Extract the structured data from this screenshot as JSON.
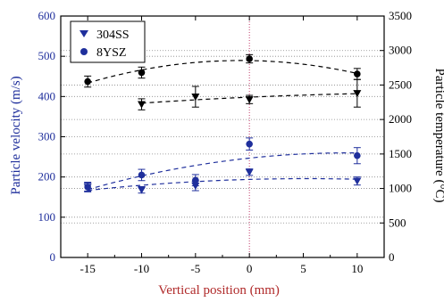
{
  "chart_data": {
    "type": "scatter",
    "xlabel": "Vertical position (mm)",
    "ylabel_left": "Particle velocity (m/s)",
    "ylabel_right": "Particle temperature (°C)",
    "x_ticks": [
      -15,
      -10,
      -5,
      0,
      5,
      10
    ],
    "xlim": [
      -17.5,
      12.5
    ],
    "ylim_left": [
      0,
      600
    ],
    "ylim_right": [
      0,
      3500
    ],
    "y_left_ticks": [
      0,
      100,
      200,
      300,
      400,
      500,
      600
    ],
    "y_right_ticks": [
      0,
      500,
      1000,
      1500,
      2000,
      2500,
      3000,
      3500
    ],
    "grid": "dotted horizontal",
    "reference_line_x": 0,
    "legend": {
      "placement": "top-left",
      "entries": [
        {
          "label": "304SS",
          "marker": "triangle-down"
        },
        {
          "label": "8YSZ",
          "marker": "circle"
        }
      ]
    },
    "series": [
      {
        "name": "304SS",
        "quantity": "velocity",
        "axis": "left",
        "color": "#1f2f9c",
        "marker": "triangle-down",
        "x": [
          -15,
          -10,
          -5,
          0,
          10
        ],
        "y": [
          175,
          168,
          178,
          212,
          190
        ],
        "err": [
          10,
          8,
          12,
          8,
          10
        ]
      },
      {
        "name": "8YSZ",
        "quantity": "velocity",
        "axis": "left",
        "color": "#1f2f9c",
        "marker": "circle",
        "x": [
          -15,
          -10,
          -5,
          0,
          10
        ],
        "y": [
          175,
          205,
          192,
          282,
          253
        ],
        "err": [
          12,
          14,
          14,
          15,
          20
        ]
      },
      {
        "name": "304SS",
        "quantity": "temperature",
        "axis": "right",
        "color": "#000000",
        "marker": "triangle-down",
        "x": [
          -10,
          -5,
          0,
          10
        ],
        "y": [
          2220,
          2330,
          2290,
          2380
        ],
        "err": [
          80,
          150,
          60,
          200
        ]
      },
      {
        "name": "8YSZ",
        "quantity": "temperature",
        "axis": "right",
        "color": "#000000",
        "marker": "circle",
        "x": [
          -15,
          -10,
          0,
          10
        ],
        "y": [
          2550,
          2680,
          2880,
          2660
        ],
        "err": [
          80,
          80,
          60,
          80
        ]
      }
    ]
  }
}
